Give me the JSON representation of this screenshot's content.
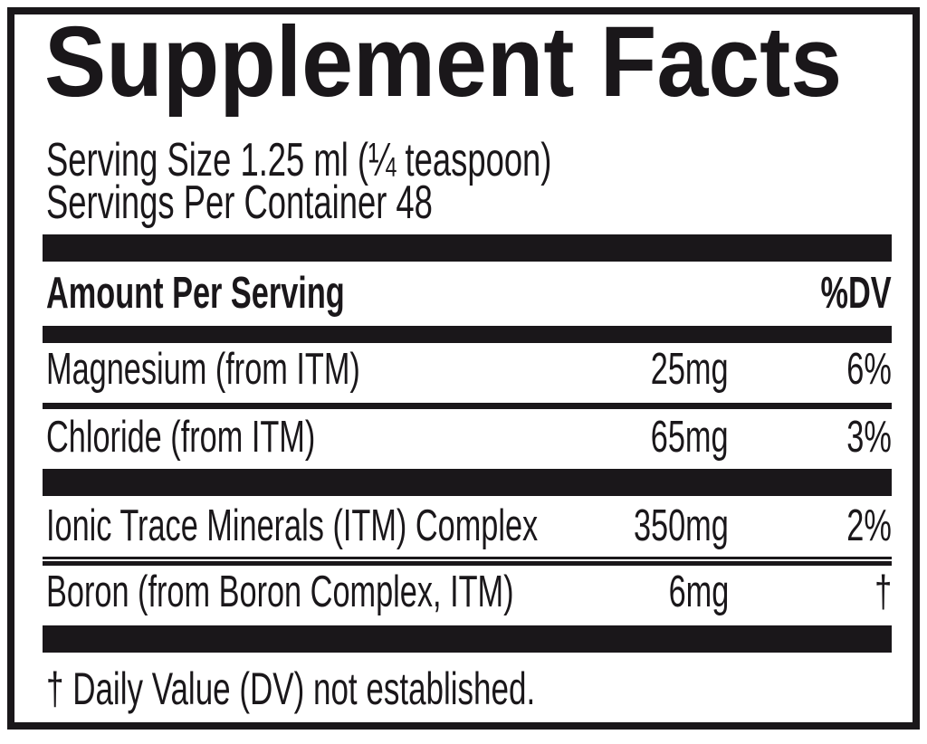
{
  "label": {
    "title": "Supplement Facts",
    "serving_size": "Serving Size 1.25 ml (¼ teaspoon)",
    "servings_per_container": "Servings Per Container 48",
    "header": {
      "amount_per_serving": "Amount Per Serving",
      "dv": "%DV"
    },
    "rows": [
      {
        "name": "Magnesium (from ITM)",
        "amount": "25mg",
        "dv": "6%"
      },
      {
        "name": "Chloride (from ITM)",
        "amount": "65mg",
        "dv": "3%"
      },
      {
        "name": "Ionic Trace Minerals (ITM) Complex",
        "amount": "350mg",
        "dv": "2%"
      },
      {
        "name": "Boron (from Boron Complex, ITM)",
        "amount": "6mg",
        "dv": "†"
      }
    ],
    "footnote": "† Daily Value (DV) not established.",
    "colors": {
      "ink": "#1a171a",
      "paper": "#ffffff"
    }
  }
}
